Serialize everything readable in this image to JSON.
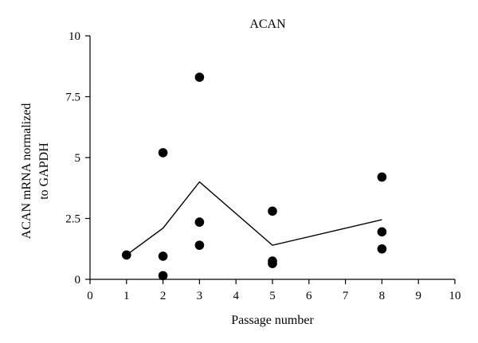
{
  "chart_data": {
    "type": "scatter",
    "title": "ACAN",
    "xlabel": "Passage number",
    "ylabel": [
      "ACAN mRNA normalized",
      "to GAPDH"
    ],
    "xlim": [
      0,
      10
    ],
    "ylim": [
      0,
      10
    ],
    "x_ticks": [
      "0",
      "1",
      "2",
      "3",
      "4",
      "5",
      "6",
      "7",
      "8",
      "9",
      "10"
    ],
    "y_ticks": [
      "0",
      "2.5",
      "5",
      "7.5",
      "10"
    ],
    "grid": false,
    "legend": "none",
    "points": [
      {
        "x": 1,
        "y": 1.0
      },
      {
        "x": 2,
        "y": 5.2
      },
      {
        "x": 2,
        "y": 0.95
      },
      {
        "x": 2,
        "y": 0.15
      },
      {
        "x": 3,
        "y": 8.3
      },
      {
        "x": 3,
        "y": 2.35
      },
      {
        "x": 3,
        "y": 1.4
      },
      {
        "x": 5,
        "y": 2.8
      },
      {
        "x": 5,
        "y": 0.75
      },
      {
        "x": 5,
        "y": 0.65
      },
      {
        "x": 8,
        "y": 4.2
      },
      {
        "x": 8,
        "y": 1.95
      },
      {
        "x": 8,
        "y": 1.25
      }
    ],
    "mean_line": [
      {
        "x": 1,
        "y": 1.0
      },
      {
        "x": 2,
        "y": 2.1
      },
      {
        "x": 3,
        "y": 4.0
      },
      {
        "x": 5,
        "y": 1.4
      },
      {
        "x": 8,
        "y": 2.45
      }
    ],
    "colors": {
      "marker": "#000000",
      "line": "#000000",
      "background": "#ffffff"
    }
  }
}
